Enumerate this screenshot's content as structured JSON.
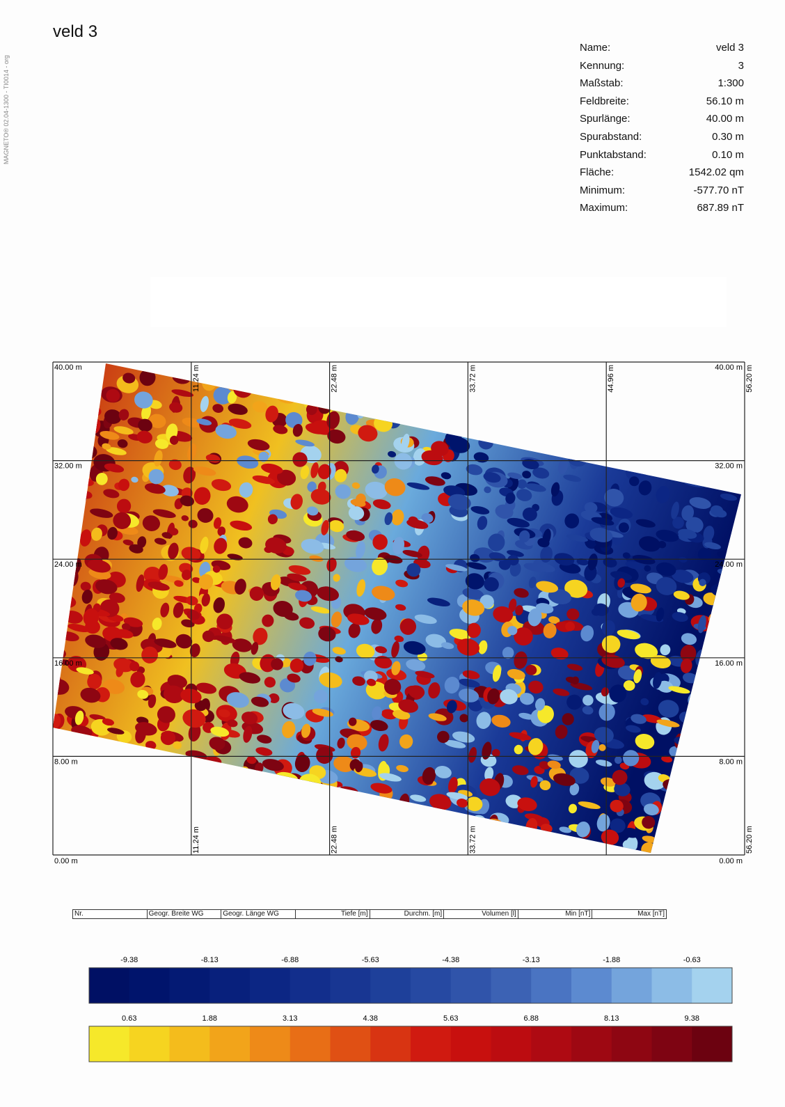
{
  "side_text": "MAGNETO® 02.04-1300 - TI0014 - org",
  "header": {
    "title": "veld 3"
  },
  "info": [
    {
      "label": "Name:",
      "value": "veld 3"
    },
    {
      "label": "Kennung:",
      "value": "3"
    },
    {
      "label": "Maßstab:",
      "value": "1:300"
    },
    {
      "label": "Feldbreite:",
      "value": "56.10 m"
    },
    {
      "label": "Spurlänge:",
      "value": "40.00 m"
    },
    {
      "label": "Spurabstand:",
      "value": "0.30 m"
    },
    {
      "label": "Punktabstand:",
      "value": "0.10 m"
    },
    {
      "label": "Fläche:",
      "value": "1542.02 qm"
    },
    {
      "label": "Minimum:",
      "value": "-577.70 nT"
    },
    {
      "label": "Maximum:",
      "value": "687.89 nT"
    }
  ],
  "map": {
    "y_labels": [
      "40.00 m",
      "32.00 m",
      "24.00 m",
      "16.00 m",
      "8.00 m",
      "0.00 m"
    ],
    "top_labels": [
      "11.24 m",
      "22.48 m",
      "33.72 m",
      "44.96 m",
      "56.20 m"
    ],
    "bottom_labels": [
      "11.24 m",
      "22.48 m",
      "33.72 m",
      "56.20 m"
    ]
  },
  "table": {
    "columns": [
      "Nr.",
      "Geogr. Breite WG",
      "Geogr. Länge WG",
      "Tiefe [m]",
      "Durchm. [m]",
      "Volumen [l]",
      "Min [nT]",
      "Max [nT]"
    ]
  },
  "scale": {
    "negative": {
      "labels": [
        "-9.38",
        "-8.13",
        "-6.88",
        "-5.63",
        "-4.38",
        "-3.13",
        "-1.88",
        "-0.63"
      ],
      "colors": [
        "#001064",
        "#00146c",
        "#041a74",
        "#08207c",
        "#0c2684",
        "#122e8c",
        "#183692",
        "#1e409a",
        "#2649a2",
        "#3054aa",
        "#3c62b4",
        "#4a74c2",
        "#5c8ad0",
        "#74a4dc",
        "#8cbce6",
        "#a4d2ee"
      ]
    },
    "positive": {
      "labels": [
        "0.63",
        "1.88",
        "3.13",
        "4.38",
        "5.63",
        "6.88",
        "8.13",
        "9.38"
      ],
      "colors": [
        "#f6e82a",
        "#f6d420",
        "#f4bc1c",
        "#f2a41a",
        "#ee8a18",
        "#e86e16",
        "#e05014",
        "#d83412",
        "#d01a10",
        "#c8100e",
        "#bc0c10",
        "#ae0a12",
        "#9e0812",
        "#8e0612",
        "#7e0412",
        "#6c0210"
      ]
    }
  }
}
